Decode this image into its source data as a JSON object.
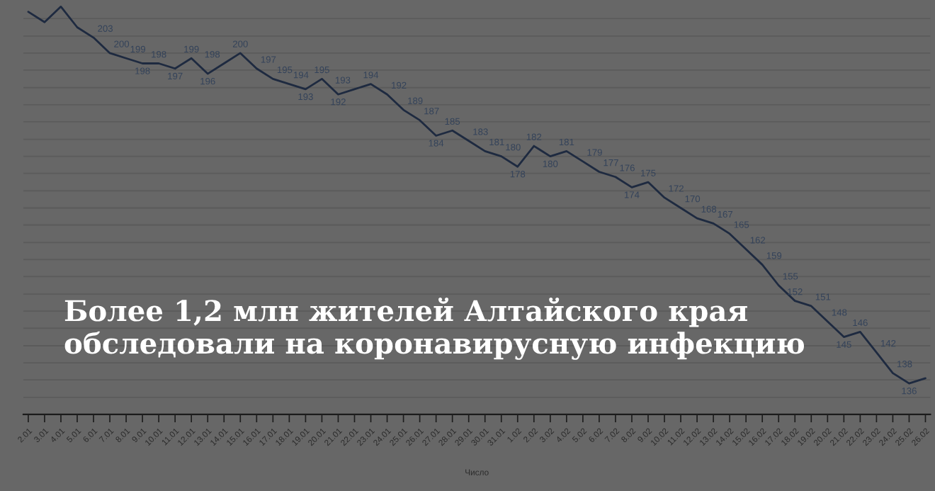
{
  "chart_data": {
    "type": "line",
    "title": "Более 1,2 млн жителей Алтайского края\nобследовали на коронавирусную инфекцию",
    "xlabel": "Число",
    "categories": [
      "2.01",
      "3.01",
      "4.01",
      "5.01",
      "6.01",
      "7.01",
      "8.01",
      "9.01",
      "10.01",
      "11.01",
      "12.01",
      "13.01",
      "14.01",
      "15.01",
      "16.01",
      "17.01",
      "18.01",
      "19.01",
      "20.01",
      "21.01",
      "22.01",
      "23.01",
      "24.01",
      "25.01",
      "26.01",
      "27.01",
      "28.01",
      "29.01",
      "30.01",
      "31.01",
      "1.02",
      "2.02",
      "3.02",
      "4.02",
      "5.02",
      "6.02",
      "7.02",
      "8.02",
      "9.02",
      "10.02",
      "11.02",
      "12.02",
      "13.02",
      "14.02",
      "15.02",
      "16.02",
      "17.02",
      "18.02",
      "19.02",
      "20.02",
      "21.02",
      "22.02",
      "23.02",
      "24.02",
      "25.02",
      "26.02"
    ],
    "values": [
      208,
      206,
      209,
      205,
      203,
      200,
      199,
      198,
      198,
      197,
      199,
      196,
      198,
      200,
      197,
      195,
      194,
      193,
      195,
      192,
      193,
      194,
      192,
      189,
      187,
      184,
      185,
      183,
      181,
      180,
      178,
      182,
      180,
      181,
      179,
      177,
      176,
      174,
      175,
      172,
      170,
      168,
      167,
      165,
      162,
      159,
      155,
      152,
      151,
      148,
      145,
      146,
      142,
      138,
      136,
      137
    ],
    "value_labels": [
      null,
      null,
      null,
      null,
      "203",
      "200",
      "199",
      "198",
      "198",
      "197",
      "199",
      "196",
      "198",
      "200",
      "197",
      "195",
      "194",
      "193",
      "195",
      "192",
      "193",
      "194",
      "192",
      "189",
      "187",
      "184",
      "185",
      "183",
      "181",
      "180",
      "178",
      "182",
      "180",
      "181",
      "179",
      "177",
      "176",
      "174",
      "175",
      "172",
      "170",
      "168",
      "167",
      "165",
      "162",
      "159",
      "155",
      "152",
      "151",
      "148",
      "145",
      "146",
      "142",
      "138",
      "136",
      null
    ],
    "color": "#1e2a40",
    "ylim": [
      130,
      210
    ],
    "yticks": [
      {
        "value": 133.3,
        "label": null
      },
      {
        "value": 136.7,
        "label": null
      },
      {
        "value": 140,
        "label": null
      },
      {
        "value": 143.3,
        "label": null
      },
      {
        "value": 146.7,
        "label": null
      },
      {
        "value": 150,
        "label": null
      },
      {
        "value": 153.3,
        "label": null
      },
      {
        "value": 156.7,
        "label": null
      },
      {
        "value": 160,
        "label": null
      },
      {
        "value": 163.3,
        "label": null
      },
      {
        "value": 166.7,
        "label": null
      },
      {
        "value": 170,
        "label": null
      },
      {
        "value": 173.3,
        "label": null
      },
      {
        "value": 176.7,
        "label": null
      },
      {
        "value": 180,
        "label": null
      },
      {
        "value": 183.3,
        "label": null
      },
      {
        "value": 186.7,
        "label": null
      },
      {
        "value": 190,
        "label": null
      },
      {
        "value": 193.3,
        "label": null
      },
      {
        "value": 196.7,
        "label": null
      },
      {
        "value": 200,
        "label": null
      },
      {
        "value": 203.3,
        "label": null
      },
      {
        "value": 206.7,
        "label": null
      }
    ],
    "grid": "y",
    "tick_labels": "x"
  }
}
